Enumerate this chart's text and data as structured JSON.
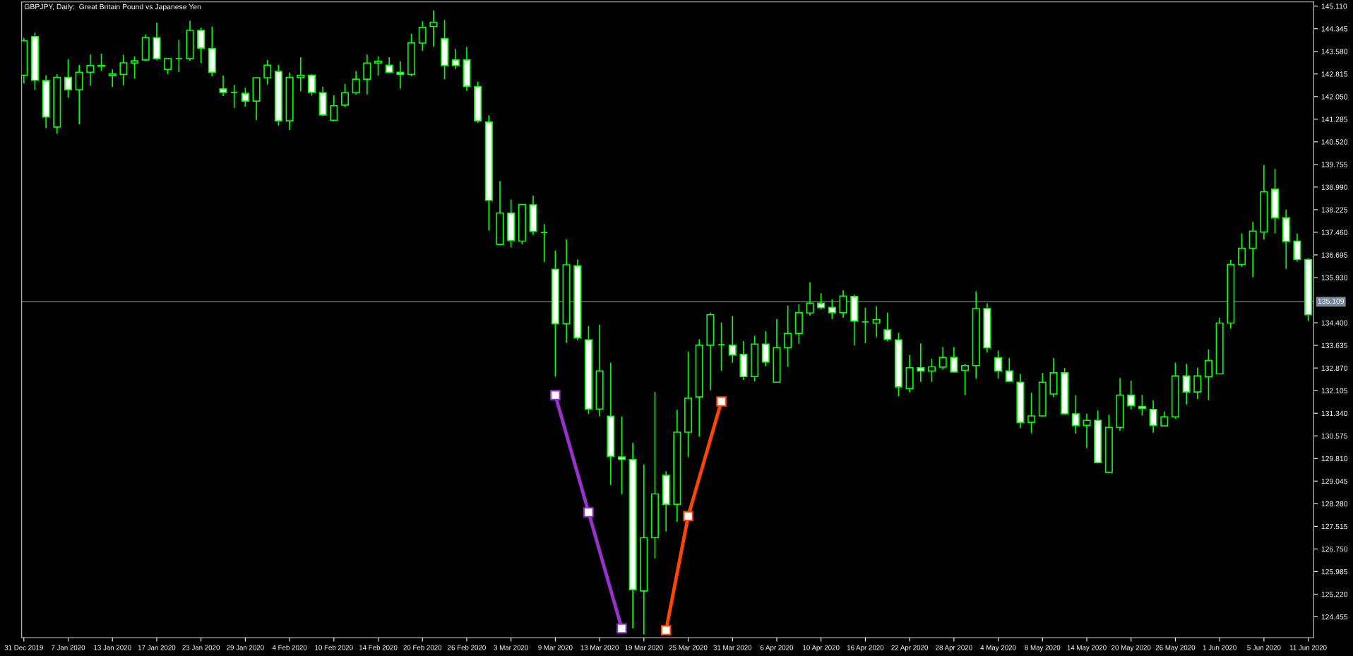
{
  "chart_data": {
    "type": "candlestick",
    "title": "GBPJPY, Daily:  Great Britain Pound vs Japanese Yen",
    "color": "#00ff00",
    "categories": [
      "31 Dec 2019",
      null,
      null,
      null,
      "7 Jan 2020",
      null,
      null,
      null,
      "13 Jan 2020",
      null,
      null,
      null,
      "17 Jan 2020",
      null,
      null,
      null,
      "23 Jan 2020",
      null,
      null,
      null,
      "29 Jan 2020",
      null,
      null,
      null,
      "4 Feb 2020",
      null,
      null,
      null,
      "10 Feb 2020",
      null,
      null,
      null,
      "14 Feb 2020",
      null,
      null,
      null,
      "20 Feb 2020",
      null,
      null,
      null,
      "26 Feb 2020",
      null,
      null,
      null,
      "3 Mar 2020",
      null,
      null,
      null,
      "9 Mar 2020",
      null,
      null,
      null,
      "13 Mar 2020",
      null,
      null,
      null,
      "19 Mar 2020",
      null,
      null,
      null,
      "25 Mar 2020",
      null,
      null,
      null,
      "31 Mar 2020",
      null,
      null,
      null,
      "6 Apr 2020",
      null,
      null,
      null,
      "10 Apr 2020",
      null,
      null,
      null,
      "16 Apr 2020",
      null,
      null,
      null,
      "22 Apr 2020",
      null,
      null,
      null,
      "28 Apr 2020",
      null,
      null,
      null,
      "4 May 2020",
      null,
      null,
      null,
      "8 May 2020",
      null,
      null,
      null,
      "14 May 2020",
      null,
      null,
      null,
      "20 May 2020",
      null,
      null,
      null,
      "26 May 2020",
      null,
      null,
      null,
      "1 Jun 2020",
      null,
      null,
      null,
      "5 Jun 2020",
      null,
      null,
      null,
      "11 Jun 2020"
    ],
    "ohlc": [
      [
        142.77,
        144.04,
        142.49,
        143.94
      ],
      [
        144.08,
        144.21,
        142.28,
        142.6
      ],
      [
        142.59,
        142.77,
        140.99,
        141.36
      ],
      [
        141.02,
        142.8,
        140.8,
        142.7
      ],
      [
        142.7,
        143.31,
        142.01,
        142.28
      ],
      [
        142.28,
        143.12,
        141.11,
        142.87
      ],
      [
        142.87,
        143.48,
        142.42,
        143.1
      ],
      [
        143.08,
        143.5,
        142.91,
        143.1
      ],
      [
        142.76,
        142.97,
        142.38,
        142.81
      ],
      [
        142.8,
        143.46,
        142.43,
        143.19
      ],
      [
        143.18,
        143.41,
        142.66,
        143.26
      ],
      [
        143.29,
        144.15,
        143.25,
        144.04
      ],
      [
        144.04,
        144.55,
        143.28,
        143.33
      ],
      [
        142.97,
        143.33,
        142.8,
        143.33
      ],
      [
        143.33,
        143.97,
        142.88,
        143.33
      ],
      [
        143.33,
        144.62,
        143.26,
        144.29
      ],
      [
        144.29,
        144.38,
        143.19,
        143.69
      ],
      [
        143.67,
        144.42,
        142.74,
        142.87
      ],
      [
        142.31,
        142.76,
        142.07,
        142.19
      ],
      [
        142.19,
        142.45,
        141.67,
        142.19
      ],
      [
        142.16,
        142.35,
        141.71,
        141.9
      ],
      [
        141.9,
        142.7,
        141.25,
        142.69
      ],
      [
        142.69,
        143.29,
        142.46,
        143.11
      ],
      [
        142.9,
        143.12,
        141.07,
        141.23
      ],
      [
        141.23,
        142.86,
        140.92,
        142.7
      ],
      [
        142.7,
        143.38,
        142.22,
        142.77
      ],
      [
        142.77,
        142.81,
        142.08,
        142.19
      ],
      [
        142.18,
        142.38,
        141.39,
        141.43
      ],
      [
        141.25,
        142.09,
        141.22,
        141.74
      ],
      [
        141.76,
        142.48,
        141.7,
        142.18
      ],
      [
        142.18,
        142.91,
        142.12,
        142.64
      ],
      [
        142.64,
        143.48,
        142.12,
        143.18
      ],
      [
        143.18,
        143.41,
        142.76,
        143.24
      ],
      [
        143.11,
        143.38,
        142.83,
        142.87
      ],
      [
        142.87,
        143.24,
        142.32,
        142.8
      ],
      [
        142.8,
        144.18,
        142.74,
        143.87
      ],
      [
        143.86,
        144.6,
        143.6,
        144.39
      ],
      [
        144.42,
        144.97,
        143.73,
        144.56
      ],
      [
        144.01,
        144.64,
        142.63,
        143.1
      ],
      [
        143.29,
        143.66,
        142.98,
        143.1
      ],
      [
        143.29,
        143.73,
        142.24,
        142.4
      ],
      [
        142.39,
        142.56,
        141.16,
        141.23
      ],
      [
        141.19,
        141.42,
        137.52,
        138.54
      ],
      [
        137.05,
        139.19,
        137.04,
        138.11
      ],
      [
        138.11,
        138.57,
        136.95,
        137.18
      ],
      [
        137.16,
        138.41,
        137.05,
        138.4
      ],
      [
        138.39,
        138.7,
        137.37,
        137.49
      ],
      [
        137.45,
        137.74,
        136.46,
        137.45
      ],
      [
        136.21,
        136.84,
        132.58,
        134.37
      ],
      [
        134.37,
        137.22,
        133.72,
        136.36
      ],
      [
        136.33,
        136.54,
        133.81,
        133.89
      ],
      [
        133.82,
        134.29,
        131.31,
        131.48
      ],
      [
        131.48,
        134.33,
        131.24,
        132.77
      ],
      [
        131.24,
        133.05,
        128.92,
        129.88
      ],
      [
        129.86,
        131.23,
        128.6,
        129.78
      ],
      [
        129.77,
        130.34,
        124.06,
        125.37
      ],
      [
        125.33,
        129.6,
        123.85,
        127.13
      ],
      [
        127.13,
        132.06,
        126.43,
        128.61
      ],
      [
        129.24,
        129.38,
        127.34,
        128.26
      ],
      [
        128.26,
        131.46,
        127.67,
        130.7
      ],
      [
        130.7,
        133.42,
        129.86,
        131.85
      ],
      [
        131.89,
        133.84,
        130.55,
        133.64
      ],
      [
        133.64,
        134.74,
        132.12,
        134.67
      ],
      [
        133.66,
        134.41,
        132.77,
        133.66
      ],
      [
        133.64,
        134.63,
        133.05,
        133.31
      ],
      [
        133.33,
        133.78,
        132.47,
        132.58
      ],
      [
        132.58,
        133.96,
        132.42,
        133.68
      ],
      [
        133.68,
        134.11,
        132.93,
        133.07
      ],
      [
        132.39,
        134.53,
        132.37,
        133.56
      ],
      [
        133.56,
        134.98,
        132.91,
        134.04
      ],
      [
        134.04,
        135.02,
        133.68,
        134.74
      ],
      [
        134.73,
        135.77,
        134.64,
        135.06
      ],
      [
        135.06,
        135.4,
        134.85,
        134.91
      ],
      [
        134.92,
        135.19,
        134.53,
        134.74
      ],
      [
        134.74,
        135.5,
        134.57,
        135.3
      ],
      [
        135.29,
        135.35,
        133.64,
        134.46
      ],
      [
        134.43,
        134.91,
        133.71,
        134.43
      ],
      [
        134.39,
        134.95,
        133.92,
        134.51
      ],
      [
        134.16,
        134.74,
        133.78,
        133.84
      ],
      [
        133.82,
        134.06,
        131.91,
        132.23
      ],
      [
        132.17,
        133.31,
        132.05,
        132.88
      ],
      [
        132.88,
        133.7,
        132.4,
        132.77
      ],
      [
        132.77,
        133.18,
        132.4,
        132.91
      ],
      [
        132.9,
        133.58,
        132.82,
        133.23
      ],
      [
        133.23,
        133.58,
        132.71,
        132.74
      ],
      [
        132.79,
        133.01,
        131.95,
        132.95
      ],
      [
        132.95,
        135.46,
        132.51,
        134.88
      ],
      [
        134.88,
        135.06,
        133.39,
        133.56
      ],
      [
        133.22,
        133.46,
        132.51,
        132.77
      ],
      [
        132.77,
        133.21,
        132.39,
        132.42
      ],
      [
        132.39,
        132.67,
        130.84,
        131.03
      ],
      [
        131.03,
        132.03,
        130.67,
        131.25
      ],
      [
        131.25,
        132.7,
        131.22,
        132.39
      ],
      [
        131.99,
        133.21,
        131.88,
        132.71
      ],
      [
        132.71,
        132.87,
        131.3,
        131.32
      ],
      [
        131.32,
        131.95,
        130.65,
        130.92
      ],
      [
        130.93,
        131.32,
        130.16,
        131.1
      ],
      [
        131.1,
        131.43,
        129.64,
        129.67
      ],
      [
        129.34,
        131.29,
        129.33,
        130.86
      ],
      [
        130.86,
        132.53,
        130.75,
        131.95
      ],
      [
        131.95,
        132.44,
        131.47,
        131.6
      ],
      [
        131.57,
        131.96,
        131.26,
        131.5
      ],
      [
        131.47,
        131.78,
        130.68,
        130.93
      ],
      [
        130.91,
        131.4,
        130.89,
        131.22
      ],
      [
        131.22,
        133.05,
        131.15,
        132.6
      ],
      [
        132.6,
        133.01,
        131.64,
        132.06
      ],
      [
        132.06,
        132.88,
        131.82,
        132.6
      ],
      [
        132.57,
        133.5,
        131.78,
        133.12
      ],
      [
        132.67,
        134.57,
        132.66,
        134.39
      ],
      [
        134.39,
        136.53,
        134.2,
        136.37
      ],
      [
        136.37,
        137.42,
        136.29,
        136.92
      ],
      [
        136.92,
        137.81,
        135.94,
        137.5
      ],
      [
        137.47,
        139.74,
        137.22,
        138.83
      ],
      [
        138.92,
        139.6,
        137.42,
        137.95
      ],
      [
        137.95,
        138.23,
        136.22,
        137.15
      ],
      [
        137.16,
        137.42,
        136.47,
        136.54
      ],
      [
        136.54,
        136.58,
        134.46,
        134.67
      ]
    ],
    "series": [
      {
        "type": "line",
        "color": "#9932cc",
        "marker": "square",
        "values": [
          null,
          null,
          null,
          null,
          null,
          null,
          null,
          null,
          null,
          null,
          null,
          null,
          null,
          null,
          null,
          null,
          null,
          null,
          null,
          null,
          null,
          null,
          null,
          null,
          null,
          null,
          null,
          null,
          null,
          null,
          null,
          null,
          null,
          null,
          null,
          null,
          null,
          null,
          null,
          null,
          null,
          null,
          null,
          null,
          null,
          null,
          null,
          null,
          131.95,
          null,
          null,
          127.99,
          null,
          null,
          124.06,
          null,
          null,
          null,
          null,
          null,
          null,
          null,
          null,
          null,
          null,
          null,
          null,
          null,
          null,
          null,
          null,
          null,
          null,
          null,
          null,
          null,
          null,
          null,
          null,
          null,
          null,
          null,
          null,
          null,
          null,
          null,
          null,
          null,
          null,
          null,
          null,
          null,
          null,
          null,
          null,
          null,
          null,
          null,
          null,
          null,
          null,
          null,
          null,
          null,
          null,
          null,
          null,
          null,
          null,
          null,
          null,
          null,
          null,
          null,
          null,
          null,
          null
        ]
      },
      {
        "type": "line",
        "color": "#ff4500",
        "marker": "square",
        "values": [
          null,
          null,
          null,
          null,
          null,
          null,
          null,
          null,
          null,
          null,
          null,
          null,
          null,
          null,
          null,
          null,
          null,
          null,
          null,
          null,
          null,
          null,
          null,
          null,
          null,
          null,
          null,
          null,
          null,
          null,
          null,
          null,
          null,
          null,
          null,
          null,
          null,
          null,
          null,
          null,
          null,
          null,
          null,
          null,
          null,
          null,
          null,
          null,
          null,
          null,
          null,
          null,
          null,
          null,
          null,
          null,
          null,
          null,
          124.0,
          null,
          127.86,
          null,
          null,
          131.74,
          null,
          null,
          null,
          null,
          null,
          null,
          null,
          null,
          null,
          null,
          null,
          null,
          null,
          null,
          null,
          null,
          null,
          null,
          null,
          null,
          null,
          null,
          null,
          null,
          null,
          null,
          null,
          null,
          null,
          null,
          null,
          null,
          null,
          null,
          null,
          null,
          null,
          null,
          null,
          null,
          null,
          null,
          null,
          null,
          null,
          null,
          null,
          null,
          null,
          null,
          null,
          null,
          null
        ]
      }
    ],
    "ylim": [
      123.75,
      145.25
    ],
    "yticks": [
      {
        "value": 145.11,
        "label": "145.110"
      },
      {
        "value": 144.345,
        "label": "144.345"
      },
      {
        "value": 143.58,
        "label": "143.580"
      },
      {
        "value": 142.815,
        "label": "142.815"
      },
      {
        "value": 142.05,
        "label": "142.050"
      },
      {
        "value": 141.285,
        "label": "141.285"
      },
      {
        "value": 140.52,
        "label": "140.520"
      },
      {
        "value": 139.755,
        "label": "139.755"
      },
      {
        "value": 138.99,
        "label": "138.990"
      },
      {
        "value": 138.225,
        "label": "138.225"
      },
      {
        "value": 137.46,
        "label": "137.460"
      },
      {
        "value": 136.695,
        "label": "136.695"
      },
      {
        "value": 135.93,
        "label": "135.930"
      },
      {
        "value": 134.4,
        "label": "134.400"
      },
      {
        "value": 133.635,
        "label": "133.635"
      },
      {
        "value": 132.87,
        "label": "132.870"
      },
      {
        "value": 132.105,
        "label": "132.105"
      },
      {
        "value": 131.34,
        "label": "131.340"
      },
      {
        "value": 130.575,
        "label": "130.575"
      },
      {
        "value": 129.81,
        "label": "129.810"
      },
      {
        "value": 129.045,
        "label": "129.045"
      },
      {
        "value": 128.28,
        "label": "128.280"
      },
      {
        "value": 127.515,
        "label": "127.515"
      },
      {
        "value": 126.75,
        "label": "126.750"
      },
      {
        "value": 125.985,
        "label": "125.985"
      },
      {
        "value": 125.22,
        "label": "125.220"
      },
      {
        "value": 124.455,
        "label": "124.455"
      }
    ],
    "ref_lines": [
      {
        "axis": "y",
        "value": 135.109,
        "label": "135.109",
        "color": "#778899"
      }
    ],
    "grid": false,
    "legend": false
  }
}
